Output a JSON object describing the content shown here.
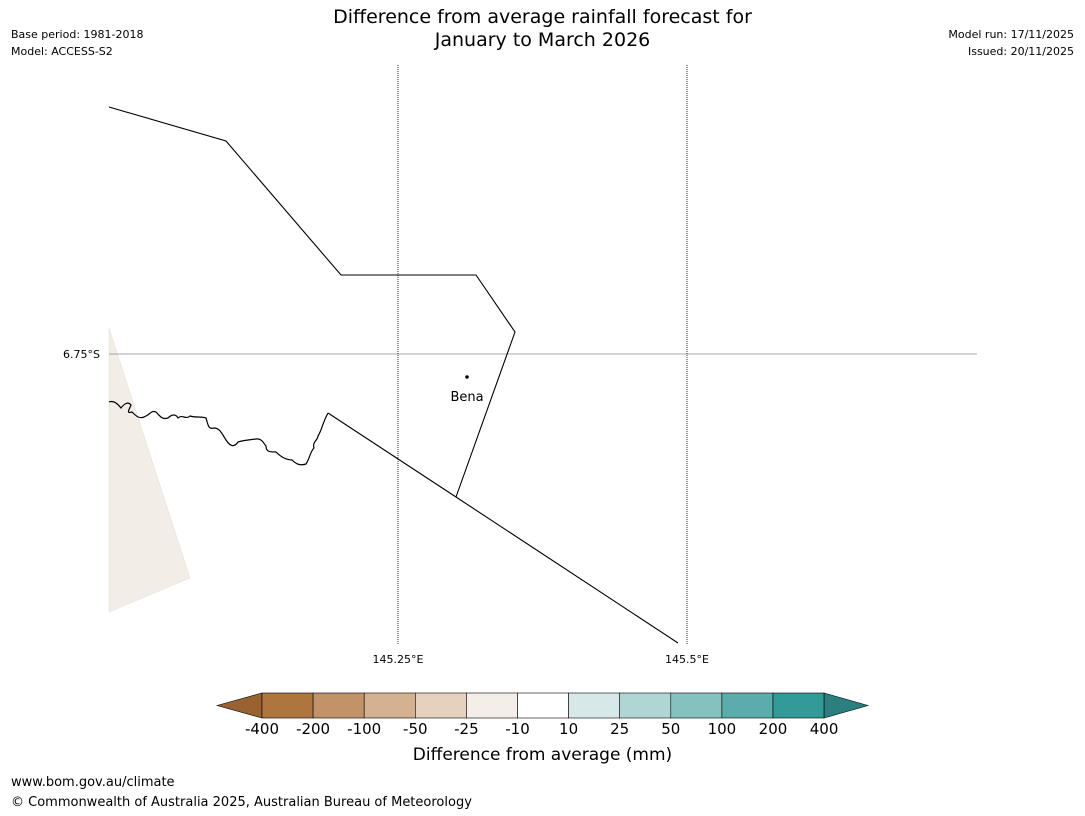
{
  "header": {
    "title_line1": "Difference from average rainfall forecast for",
    "title_line2": "January to March 2026",
    "base_period": "Base period: 1981-2018",
    "model": "Model: ACCESS-S2",
    "model_run": "Model run: 17/11/2025",
    "issued": "Issued: 20/11/2025"
  },
  "map": {
    "lat_label": "6.75°S",
    "lon_labels": [
      "145.25°E",
      "145.5°E"
    ],
    "place_name": "Bena",
    "land_color": "#f2ede6",
    "line_color": "#000000"
  },
  "colorbar": {
    "title": "Difference from average (mm)",
    "tick_labels": [
      "-400",
      "-200",
      "-100",
      "-50",
      "-25",
      "-10",
      "10",
      "25",
      "50",
      "100",
      "200",
      "400"
    ],
    "colors": [
      "#9a6230",
      "#ae753e",
      "#c29368",
      "#d4b291",
      "#e5d1bd",
      "#f3eee7",
      "#ffffff",
      "#d6e8e8",
      "#afd6d5",
      "#84c1bf",
      "#5aadab",
      "#329a98",
      "#2b7f7e"
    ]
  },
  "footer": {
    "url": "www.bom.gov.au/climate",
    "copyright": "© Commonwealth of Australia 2025, Australian Bureau of Meteorology"
  }
}
